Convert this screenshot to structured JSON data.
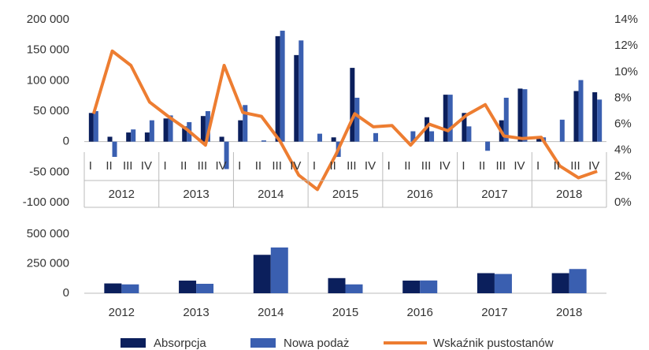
{
  "chart_data": [
    {
      "type": "bar",
      "categories": [
        "I",
        "II",
        "III",
        "IV",
        "I",
        "II",
        "III",
        "IV",
        "I",
        "II",
        "III",
        "IV",
        "I",
        "II",
        "III",
        "IV",
        "I",
        "II",
        "III",
        "IV",
        "I",
        "II",
        "III",
        "IV",
        "I",
        "II",
        "III",
        "IV"
      ],
      "years": [
        "2012",
        "2013",
        "2014",
        "2015",
        "2016",
        "2017",
        "2018"
      ],
      "series": [
        {
          "name": "Absorpcja",
          "color": "#0b1f5c",
          "values": [
            47000,
            8000,
            15000,
            15000,
            38000,
            25000,
            42000,
            8000,
            35000,
            0,
            173000,
            142000,
            0,
            7000,
            121000,
            0,
            0,
            0,
            40000,
            77000,
            47000,
            0,
            35000,
            87000,
            8000,
            0,
            83000,
            81000
          ]
        },
        {
          "name": "Nowa podaż",
          "color": "#3a5fb0",
          "values": [
            50000,
            -25000,
            20000,
            35000,
            43000,
            32000,
            50000,
            -45000,
            60000,
            2000,
            182000,
            166000,
            13000,
            -25000,
            72000,
            14000,
            0,
            17000,
            17000,
            77000,
            25000,
            -15000,
            72000,
            86000,
            7000,
            36000,
            101000,
            69000
          ]
        },
        {
          "name": "Wskaźnik pustostanów",
          "color": "#ed7d31",
          "type": "line",
          "axis": "y2",
          "values": [
            6.8,
            11.6,
            10.5,
            7.7,
            6.6,
            5.6,
            4.4,
            10.5,
            6.9,
            6.6,
            4.7,
            2.1,
            1.0,
            3.7,
            6.8,
            5.8,
            5.9,
            4.4,
            6.0,
            5.5,
            6.7,
            7.5,
            5.1,
            4.9,
            5.0,
            2.8,
            1.9,
            2.4
          ]
        }
      ],
      "ylim": [
        -100000,
        200000
      ],
      "yticks": [
        {
          "value": -100000,
          "label": "-100 000"
        },
        {
          "value": -50000,
          "label": "-50 000"
        },
        0,
        {
          "value": 50000,
          "label": "50 000"
        },
        {
          "value": 100000,
          "label": "100 000"
        },
        {
          "value": 150000,
          "label": "150 000"
        },
        {
          "value": 200000,
          "label": "200 000"
        }
      ],
      "y2lim": [
        0,
        14
      ],
      "y2ticks": [
        {
          "value": 0,
          "label": "0%"
        },
        {
          "value": 2,
          "label": "2%"
        },
        {
          "value": 4,
          "label": "4%"
        },
        {
          "value": 6,
          "label": "6%"
        },
        {
          "value": 8,
          "label": "8%"
        },
        {
          "value": 10,
          "label": "10%"
        },
        {
          "value": 12,
          "label": "12%"
        },
        {
          "value": 14,
          "label": "14%"
        }
      ],
      "grid": false,
      "legend": "bottom"
    },
    {
      "type": "bar",
      "categories": [
        "2012",
        "2013",
        "2014",
        "2015",
        "2016",
        "2017",
        "2018"
      ],
      "series": [
        {
          "color": "#0b1f5c",
          "values": [
            83000,
            107000,
            325000,
            128000,
            107000,
            170000,
            170000
          ]
        },
        {
          "color": "#3a5fb0",
          "values": [
            75000,
            80000,
            387000,
            75000,
            108000,
            163000,
            205000
          ]
        }
      ],
      "ylim": [
        0,
        500000
      ],
      "yticks": [
        0,
        {
          "value": 250000,
          "label": "250 000"
        },
        {
          "value": 500000,
          "label": "500 000"
        }
      ],
      "grid": false
    }
  ]
}
